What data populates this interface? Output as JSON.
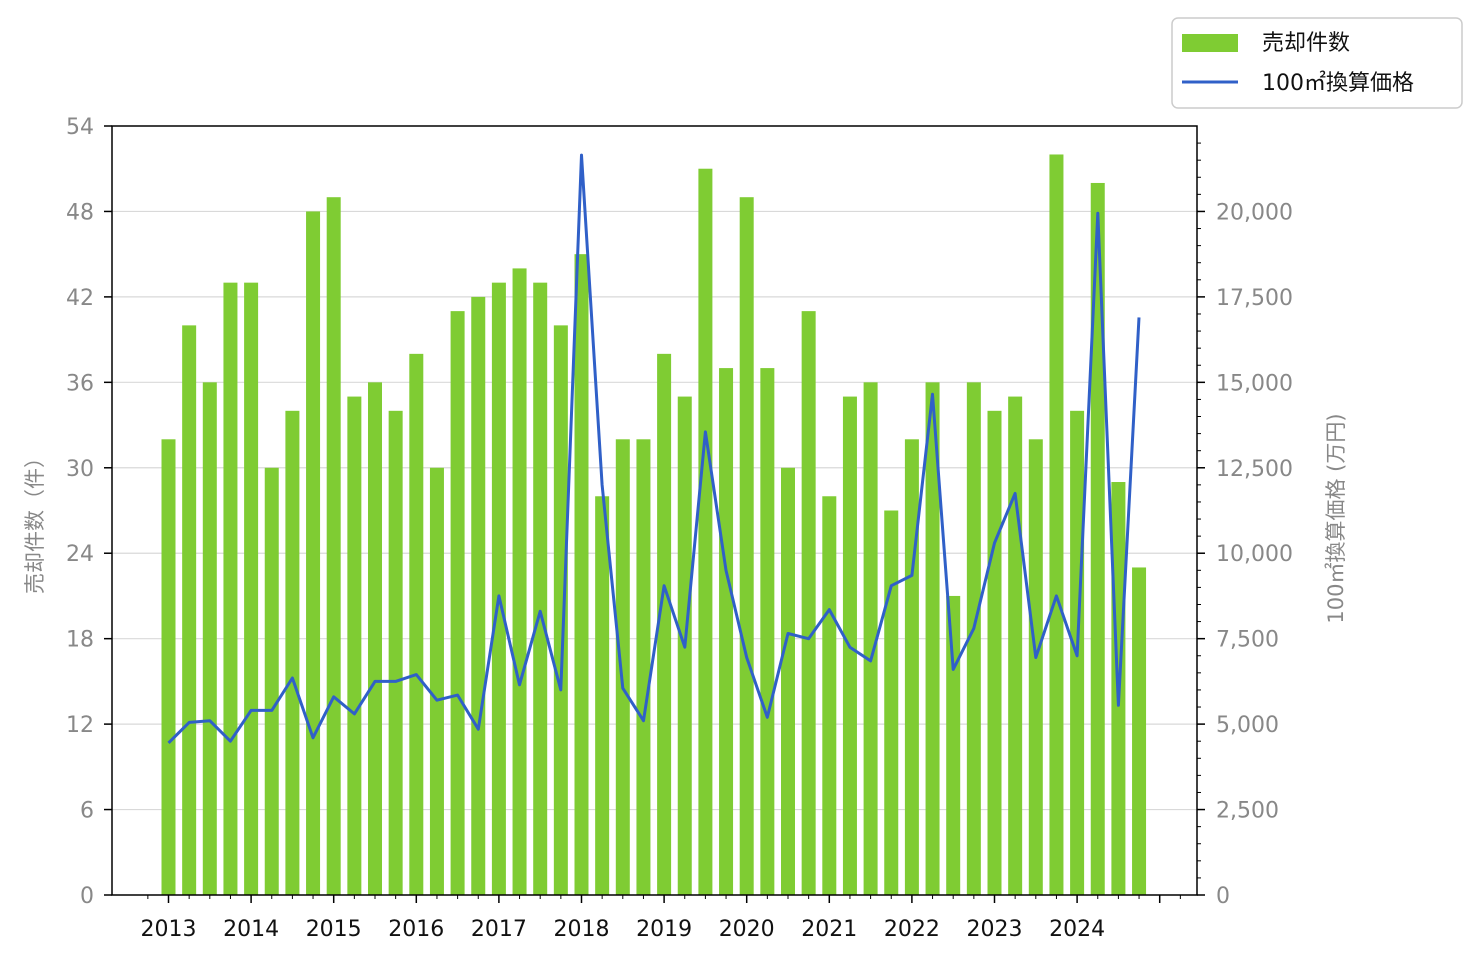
{
  "chart_data": {
    "type": "bar+line",
    "x_ticks": [
      "2013",
      "2014",
      "2015",
      "2016",
      "2017",
      "2018",
      "2019",
      "2020",
      "2021",
      "2022",
      "2023",
      "2024"
    ],
    "periods_per_year": 4,
    "start_year": 2013,
    "series": [
      {
        "name": "売却件数",
        "type": "bar",
        "axis": "left",
        "color": "#7fcc33",
        "values": [
          32,
          40,
          36,
          43,
          43,
          30,
          34,
          48,
          49,
          35,
          36,
          34,
          38,
          30,
          41,
          42,
          43,
          44,
          43,
          40,
          45,
          28,
          32,
          32,
          38,
          35,
          51,
          37,
          49,
          37,
          30,
          41,
          28,
          35,
          36,
          27,
          32,
          36,
          21,
          36,
          34,
          35,
          32,
          52,
          34,
          50,
          29,
          23
        ]
      },
      {
        "name": "100㎡換算価格",
        "type": "line",
        "axis": "right",
        "color": "#3060c8",
        "values": [
          4450,
          5050,
          5100,
          4500,
          5400,
          5400,
          6350,
          4600,
          5800,
          5300,
          6250,
          6250,
          6450,
          5700,
          5850,
          4850,
          8750,
          6150,
          8300,
          6000,
          21650,
          12000,
          6050,
          5100,
          9050,
          7250,
          13550,
          9500,
          6950,
          5200,
          7650,
          7500,
          8350,
          7250,
          6850,
          9050,
          9350,
          14650,
          6600,
          7800,
          10300,
          11750,
          6950,
          8750,
          7000,
          19950,
          5550,
          16900
        ]
      }
    ],
    "left_axis": {
      "label": "売却件数（件）",
      "ylim": [
        0,
        54
      ],
      "ticks": [
        "0",
        "6",
        "12",
        "18",
        "24",
        "30",
        "36",
        "42",
        "48",
        "54"
      ]
    },
    "right_axis": {
      "label": "100㎡換算価格 (万円)",
      "ylim": [
        0,
        22500
      ],
      "ticks": [
        "0",
        "2,500",
        "5,000",
        "7,500",
        "10,000",
        "12,500",
        "15,000",
        "17,500",
        "20,000"
      ]
    },
    "grid": "horizontal",
    "legend_position": "top-right"
  }
}
